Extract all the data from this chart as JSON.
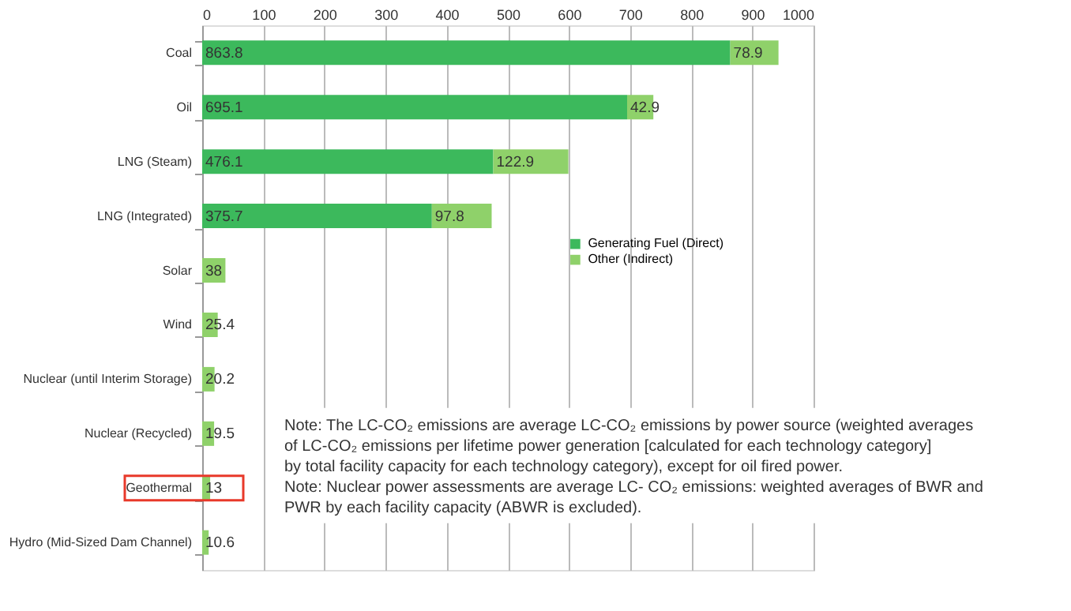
{
  "chart_data": {
    "type": "bar",
    "orientation": "horizontal",
    "stacked": true,
    "categories": [
      "Coal",
      "Oil",
      "LNG (Steam)",
      "LNG (Integrated)",
      "Solar",
      "Wind",
      "Nuclear (until Interim Storage)",
      "Nuclear (Recycled)",
      "Geothermal",
      "Hydro (Mid-Sized Dam Channel)"
    ],
    "series": [
      {
        "name": "Generating Fuel (Direct)",
        "color": "#3cb95c",
        "values": [
          863.8,
          695.1,
          476.1,
          375.7,
          null,
          null,
          null,
          null,
          null,
          null
        ]
      },
      {
        "name": "Other (Indirect)",
        "color": "#8fd16a",
        "values": [
          78.9,
          42.9,
          122.9,
          97.8,
          38,
          25.4,
          20.2,
          19.5,
          13,
          10.6
        ]
      }
    ],
    "xlim": [
      0,
      1000
    ],
    "xticks": [
      0,
      100,
      200,
      300,
      400,
      500,
      600,
      700,
      800,
      900,
      1000
    ],
    "grid": "x",
    "legend": "right",
    "data_labels": true,
    "annotations": [
      "Note: The LC-CO₂ emissions are average LC-CO₂ emissions by power source (weighted averages of LC-CO₂ emissions per lifetime power generation [calculated for each technology category] by total facility capacity for each technology category), except for oil fired power.",
      "Note: Nuclear power assessments are average LC- CO₂ emissions: weighted averages of BWR and PWR by each facility capacity (ABWR is excluded)."
    ]
  }
}
